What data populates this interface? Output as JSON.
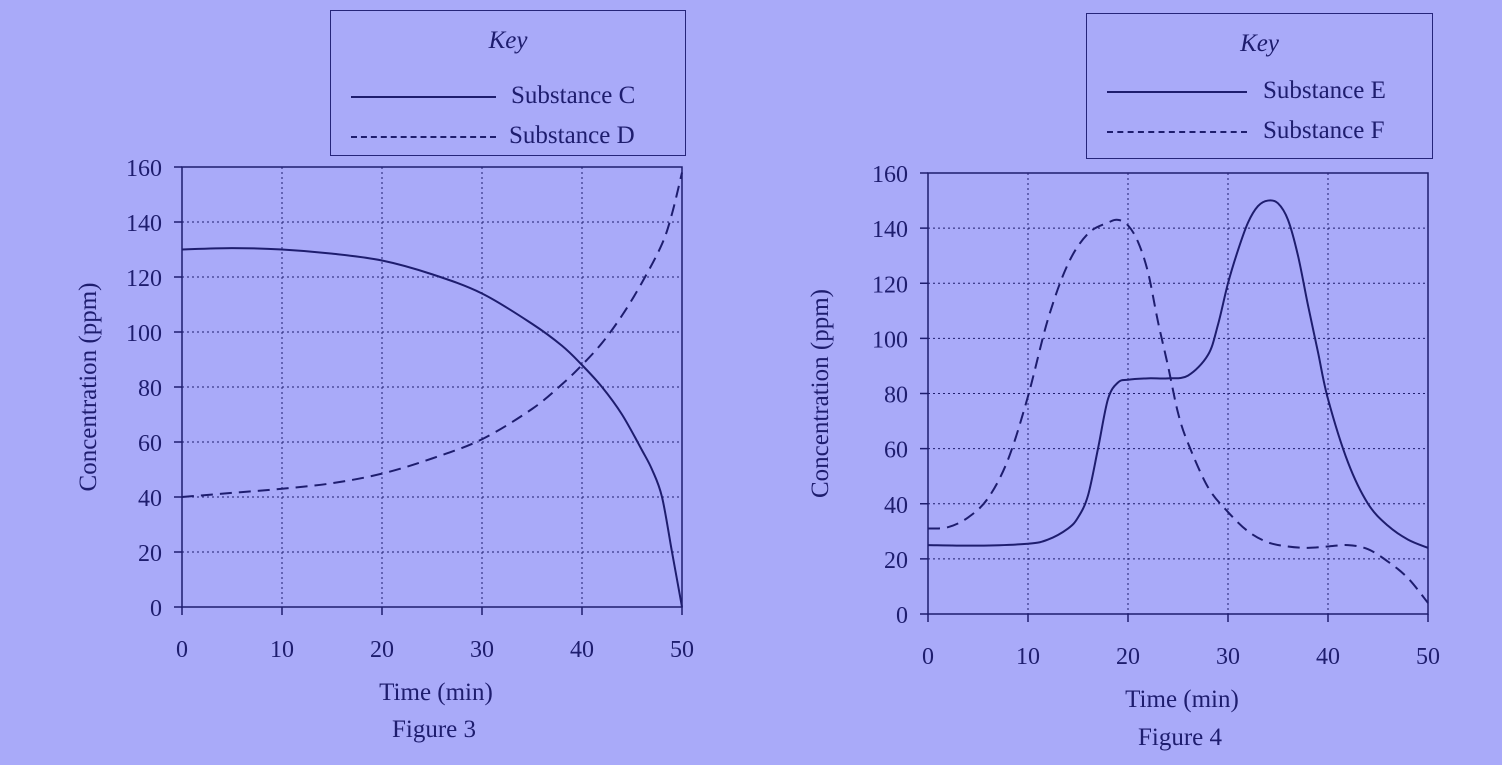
{
  "chart_data": [
    {
      "type": "line",
      "caption": "Figure 3",
      "key_title": "Key",
      "xlabel": "Time (min)",
      "ylabel": "Concentration (ppm)",
      "xlim": [
        0,
        50
      ],
      "ylim": [
        0,
        160
      ],
      "xticks": [
        0,
        10,
        20,
        30,
        40,
        50
      ],
      "yticks": [
        0,
        20,
        40,
        60,
        80,
        100,
        120,
        140,
        160
      ],
      "grid": true,
      "legend_position": "top",
      "series": [
        {
          "name": "Substance C",
          "style": "solid",
          "x": [
            0,
            5,
            10,
            15,
            20,
            25,
            30,
            35,
            38,
            40,
            42,
            44,
            46,
            47,
            48,
            49,
            50
          ],
          "y": [
            130,
            130.5,
            130,
            128.5,
            126,
            121,
            114,
            103,
            95,
            88,
            80,
            70,
            57,
            50,
            40,
            20,
            0
          ]
        },
        {
          "name": "Substance D",
          "style": "dashed",
          "x": [
            0,
            5,
            10,
            15,
            20,
            25,
            30,
            35,
            38,
            40,
            42,
            44,
            46,
            48,
            49,
            50
          ],
          "y": [
            40,
            41.5,
            43,
            45,
            48.5,
            54,
            61,
            72,
            81,
            88,
            96,
            106,
            118,
            132,
            143,
            158
          ]
        }
      ]
    },
    {
      "type": "line",
      "caption": "Figure 4",
      "key_title": "Key",
      "xlabel": "Time (min)",
      "ylabel": "Concentration (ppm)",
      "xlim": [
        0,
        50
      ],
      "ylim": [
        0,
        160
      ],
      "xticks": [
        0,
        10,
        20,
        30,
        40,
        50
      ],
      "yticks": [
        0,
        20,
        40,
        60,
        80,
        100,
        120,
        140,
        160
      ],
      "grid": true,
      "legend_position": "top",
      "series": [
        {
          "name": "Substance E",
          "style": "solid",
          "x": [
            0,
            5,
            10,
            12,
            14,
            15,
            16,
            17,
            18,
            19,
            20,
            22,
            24,
            26,
            28,
            29,
            30,
            31,
            32,
            33,
            34,
            35,
            36,
            37,
            38,
            39,
            40,
            42,
            44,
            46,
            48,
            50
          ],
          "y": [
            25,
            24.8,
            25.5,
            27,
            31,
            35,
            43,
            60,
            78,
            84,
            85,
            85.5,
            85.5,
            86.5,
            94,
            105,
            120,
            132,
            142,
            148,
            150,
            149,
            143,
            130,
            112,
            95,
            78,
            55,
            40,
            32,
            27,
            24
          ]
        },
        {
          "name": "Substance F",
          "style": "dashed",
          "x": [
            0,
            2,
            4,
            6,
            8,
            10,
            12,
            14,
            16,
            18,
            19,
            20,
            21,
            22,
            23,
            24,
            25,
            26,
            28,
            30,
            32,
            34,
            36,
            38,
            40,
            42,
            44,
            46,
            48,
            50
          ],
          "y": [
            31,
            31.5,
            35,
            42,
            56,
            79,
            107,
            127,
            138,
            142,
            143,
            141,
            135,
            124,
            106,
            90,
            73,
            62,
            46,
            37,
            30,
            26,
            24.5,
            24,
            24.5,
            25,
            23.5,
            19,
            13,
            4
          ]
        }
      ]
    }
  ]
}
